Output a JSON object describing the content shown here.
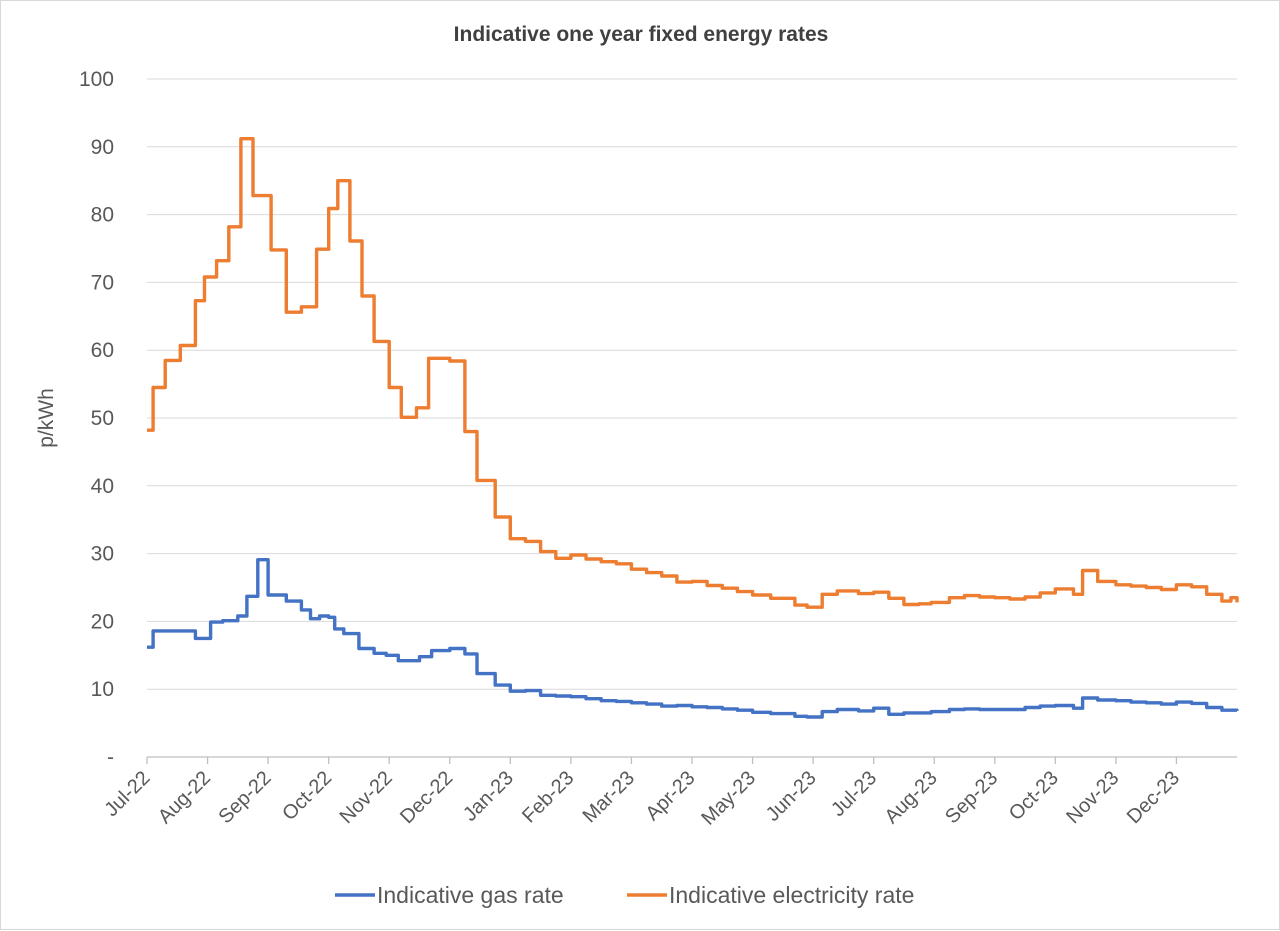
{
  "chart_data": {
    "type": "line",
    "title": "Indicative one year fixed energy rates",
    "xlabel": "",
    "ylabel": "p/kWh",
    "ylim": [
      0,
      100
    ],
    "yticks": [
      0,
      10,
      20,
      30,
      40,
      50,
      60,
      70,
      80,
      90,
      100
    ],
    "ytick_labels": [
      "-",
      "10",
      "20",
      "30",
      "40",
      "50",
      "60",
      "70",
      "80",
      "90",
      "100"
    ],
    "xlim": [
      0,
      18
    ],
    "categories": [
      "Jul-22",
      "Aug-22",
      "Sep-22",
      "Oct-22",
      "Nov-22",
      "Dec-22",
      "Jan-23",
      "Feb-23",
      "Mar-23",
      "Apr-23",
      "May-23",
      "Jun-23",
      "Jul-23",
      "Aug-23",
      "Sep-23",
      "Oct-23",
      "Nov-23",
      "Dec-23"
    ],
    "x_note": "x = months since Jul-22; step series",
    "grid": true,
    "legend_position": "bottom",
    "series": [
      {
        "name": "Indicative gas rate",
        "color": "#4472C4",
        "x": [
          0,
          0.1,
          0.45,
          0.8,
          1.05,
          1.25,
          1.5,
          1.65,
          1.83,
          2.0,
          2.3,
          2.55,
          2.7,
          2.85,
          3.0,
          3.1,
          3.25,
          3.5,
          3.75,
          3.95,
          4.15,
          4.5,
          4.7,
          5.0,
          5.25,
          5.45,
          5.75,
          6.0,
          6.25,
          6.5,
          6.75,
          7.0,
          7.25,
          7.5,
          7.75,
          8.0,
          8.25,
          8.5,
          8.75,
          9.0,
          9.25,
          9.5,
          9.75,
          10.0,
          10.3,
          10.7,
          10.9,
          11.15,
          11.4,
          11.75,
          12.0,
          12.25,
          12.5,
          12.75,
          12.95,
          13.25,
          13.5,
          13.75,
          14.0,
          14.25,
          14.5,
          14.75,
          15.0,
          15.3,
          15.45,
          15.7,
          16.0,
          16.25,
          16.5,
          16.75,
          17.0,
          17.25,
          17.5,
          17.75,
          17.9,
          18.0
        ],
        "y": [
          16.2,
          18.6,
          18.6,
          17.5,
          19.9,
          20.1,
          20.8,
          23.7,
          29.1,
          23.9,
          23.0,
          21.7,
          20.4,
          20.8,
          20.6,
          18.9,
          18.2,
          16.0,
          15.3,
          15.0,
          14.2,
          14.8,
          15.7,
          16.0,
          15.2,
          12.3,
          10.6,
          9.7,
          9.8,
          9.1,
          9.0,
          8.9,
          8.6,
          8.3,
          8.2,
          8.0,
          7.8,
          7.5,
          7.6,
          7.4,
          7.3,
          7.1,
          6.9,
          6.6,
          6.4,
          6.0,
          5.9,
          6.7,
          7.0,
          6.8,
          7.2,
          6.3,
          6.5,
          6.5,
          6.7,
          7.0,
          7.1,
          7.0,
          7.0,
          7.0,
          7.3,
          7.5,
          7.6,
          7.2,
          8.7,
          8.4,
          8.3,
          8.1,
          8.0,
          7.8,
          8.1,
          7.9,
          7.3,
          6.9,
          6.9,
          6.8
        ]
      },
      {
        "name": "Indicative electricity rate",
        "color": "#ED7D31",
        "x": [
          0,
          0.1,
          0.3,
          0.55,
          0.8,
          0.95,
          1.15,
          1.35,
          1.55,
          1.75,
          2.05,
          2.3,
          2.55,
          2.8,
          3.0,
          3.15,
          3.35,
          3.55,
          3.75,
          4.0,
          4.2,
          4.45,
          4.65,
          5.0,
          5.25,
          5.45,
          5.75,
          6.0,
          6.25,
          6.5,
          6.75,
          7.0,
          7.25,
          7.5,
          7.75,
          8.0,
          8.25,
          8.5,
          8.75,
          9.0,
          9.25,
          9.5,
          9.75,
          10.0,
          10.3,
          10.7,
          10.9,
          11.15,
          11.4,
          11.75,
          12.0,
          12.25,
          12.5,
          12.75,
          12.95,
          13.25,
          13.5,
          13.75,
          14.0,
          14.25,
          14.5,
          14.75,
          15.0,
          15.3,
          15.45,
          15.7,
          16.0,
          16.25,
          16.5,
          16.75,
          17.0,
          17.25,
          17.5,
          17.75,
          17.9,
          18.0
        ],
        "y": [
          48.2,
          54.5,
          58.5,
          60.7,
          67.3,
          70.8,
          73.2,
          78.2,
          91.2,
          82.8,
          74.8,
          65.6,
          66.4,
          74.9,
          80.9,
          85.0,
          76.1,
          68.0,
          61.3,
          54.5,
          50.1,
          51.5,
          58.8,
          58.4,
          48.0,
          40.8,
          35.4,
          32.2,
          31.8,
          30.3,
          29.3,
          29.8,
          29.2,
          28.8,
          28.5,
          27.7,
          27.2,
          26.7,
          25.8,
          25.9,
          25.3,
          24.9,
          24.4,
          23.9,
          23.4,
          22.4,
          22.1,
          24.0,
          24.5,
          24.1,
          24.3,
          23.4,
          22.5,
          22.6,
          22.8,
          23.5,
          23.8,
          23.6,
          23.5,
          23.3,
          23.6,
          24.2,
          24.8,
          24.0,
          27.5,
          25.9,
          25.4,
          25.2,
          25.0,
          24.7,
          25.4,
          25.1,
          24.0,
          23.0,
          23.5,
          22.8
        ]
      }
    ]
  }
}
